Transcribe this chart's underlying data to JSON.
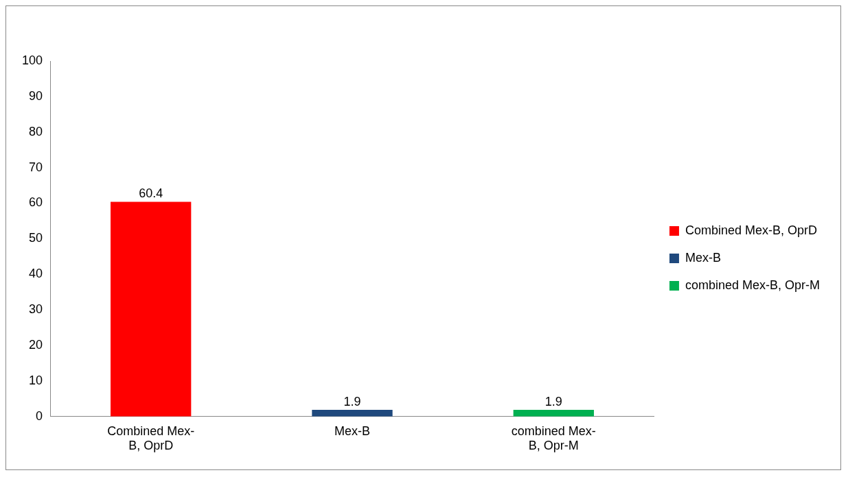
{
  "chart_data": {
    "type": "bar",
    "categories": [
      "Combined Mex-B, OprD",
      "Mex-B",
      "combined Mex-B, Opr-M"
    ],
    "series": [
      {
        "name": "Combined Mex-B, OprD",
        "color": "#ff0000",
        "values": [
          60.4,
          null,
          null
        ]
      },
      {
        "name": "Mex-B",
        "color": "#1f497d",
        "values": [
          null,
          1.9,
          null
        ]
      },
      {
        "name": "combined Mex-B, Opr-M",
        "color": "#00b050",
        "values": [
          null,
          null,
          1.9
        ]
      }
    ],
    "ylim": [
      0,
      100
    ],
    "yticks": [
      0,
      10,
      20,
      30,
      40,
      50,
      60,
      70,
      80,
      90,
      100
    ],
    "grid": false,
    "legend": "right",
    "data_labels": true
  }
}
